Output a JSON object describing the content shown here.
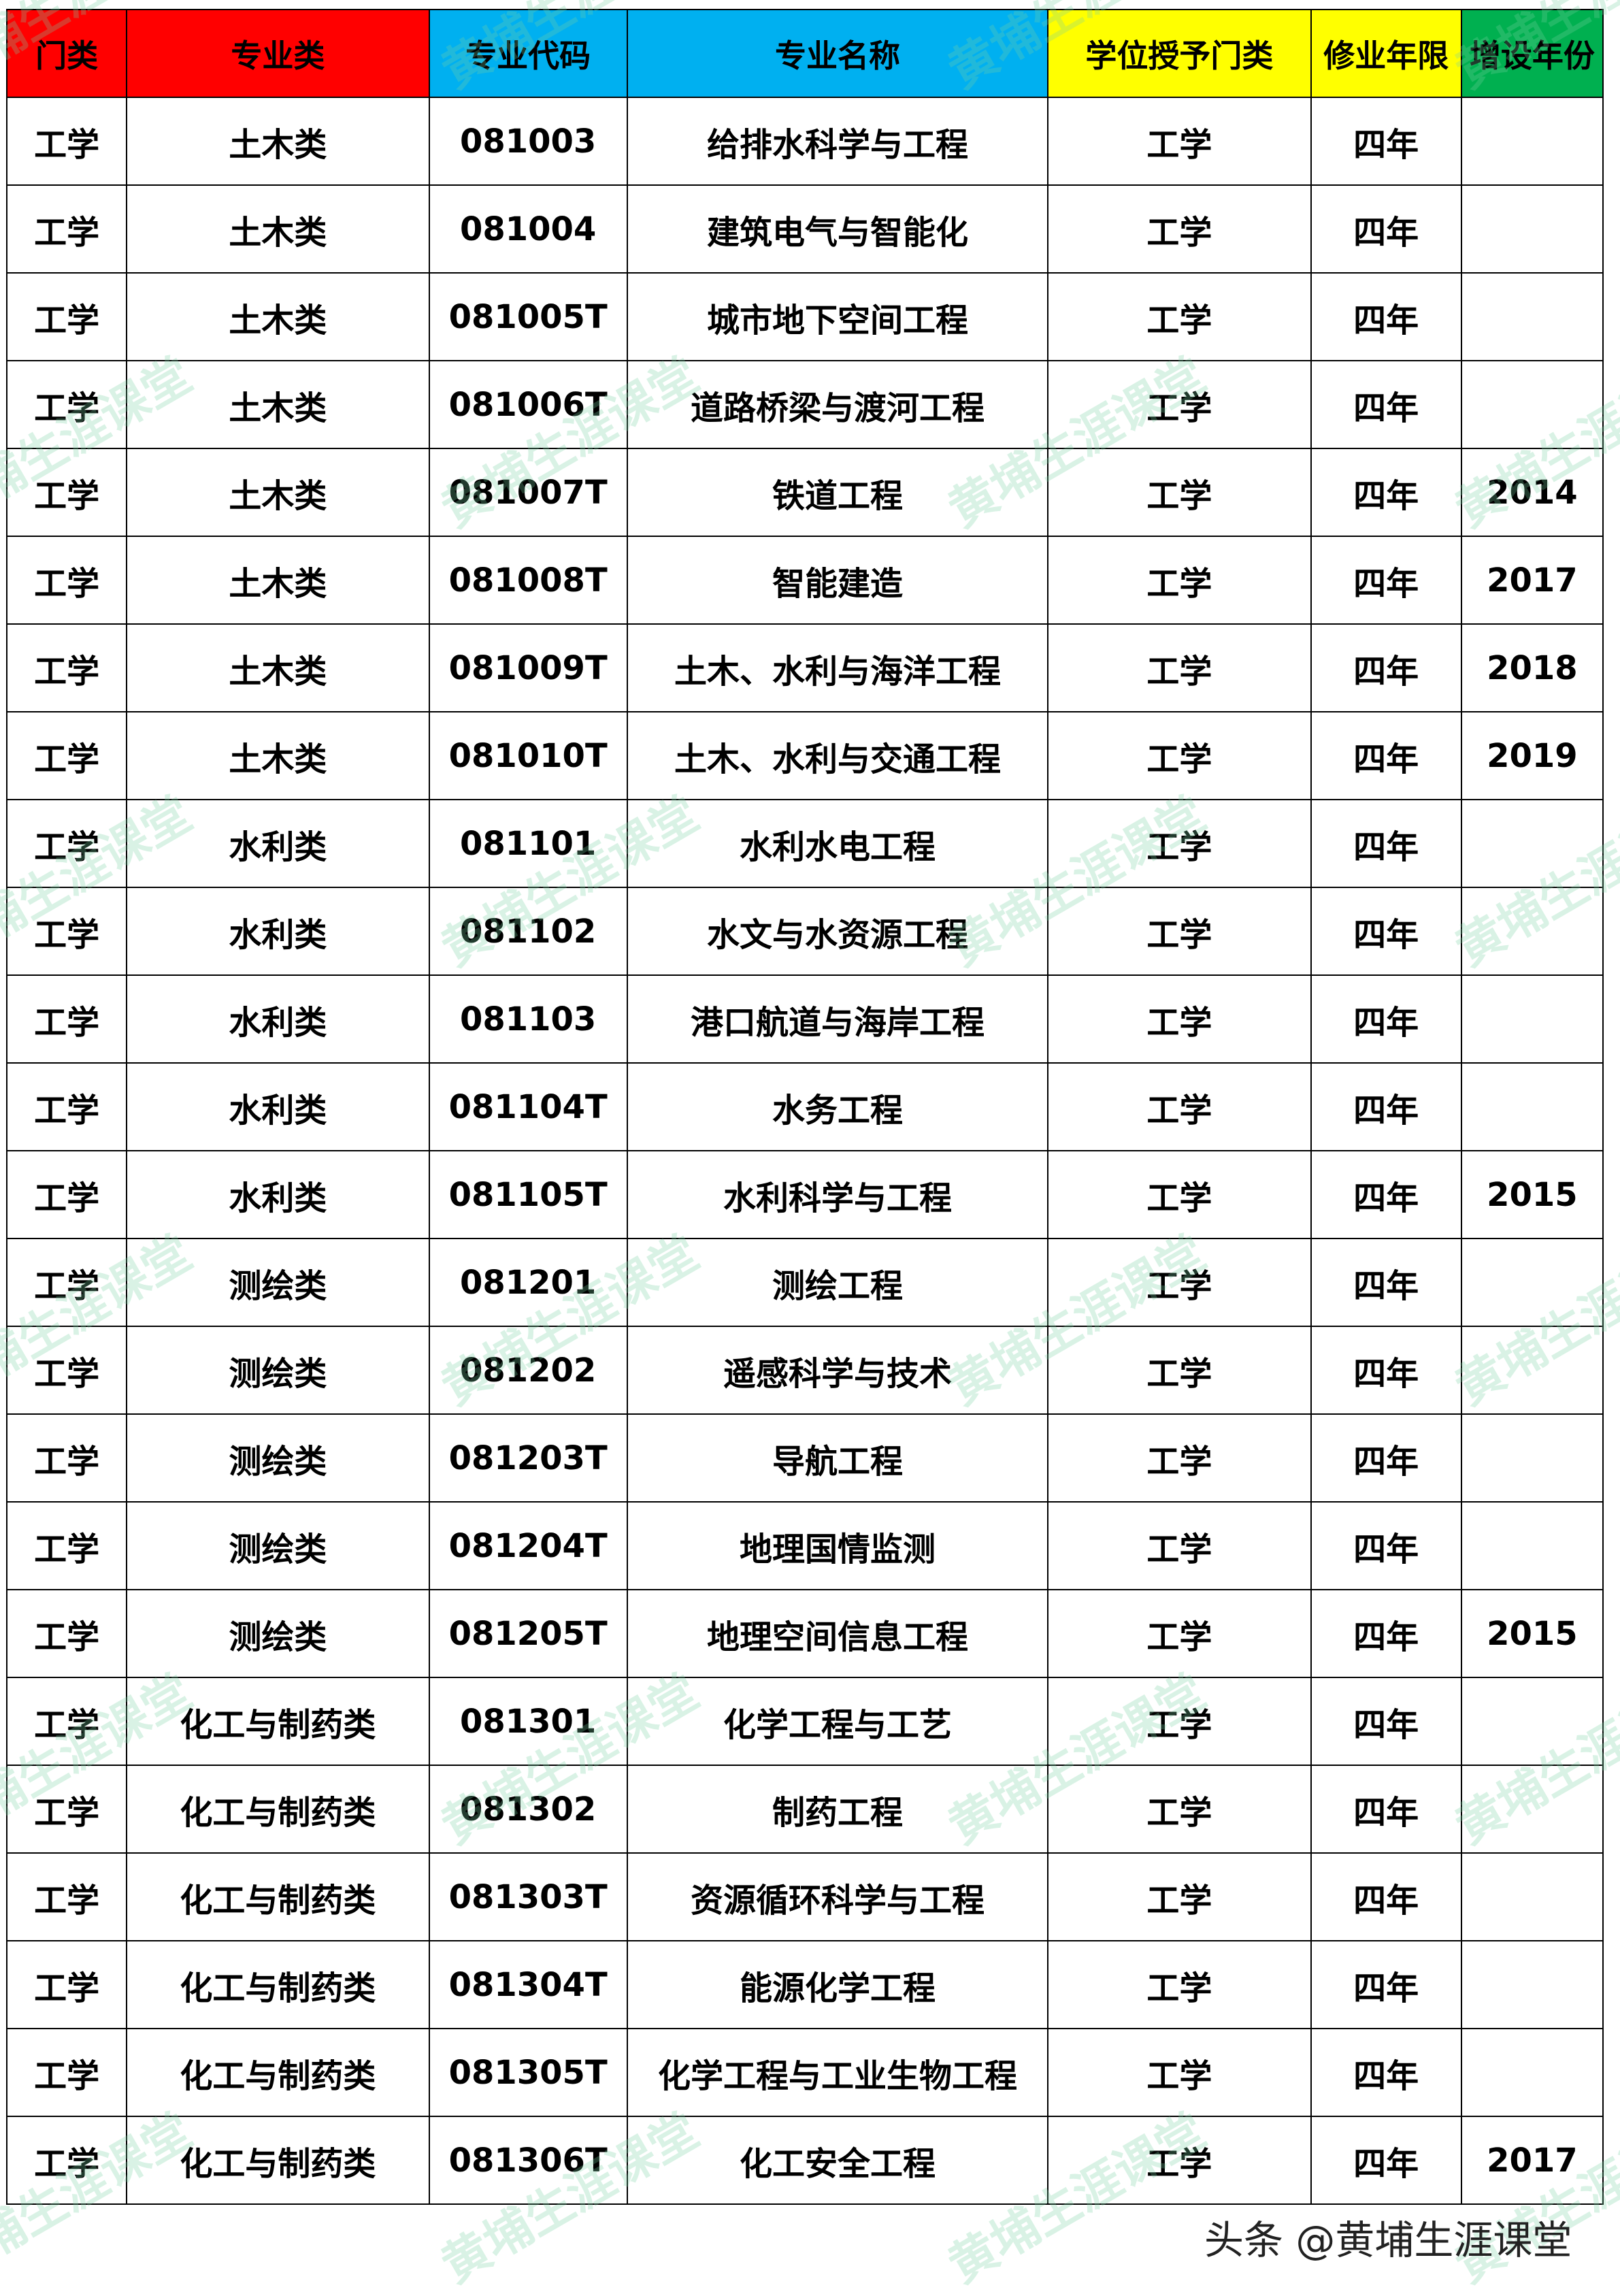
{
  "header_colors": [
    "#ff0000",
    "#ff0000",
    "#00b0f0",
    "#00b0f0",
    "#ffff00",
    "#ffff00",
    "#00b050"
  ],
  "columns": [
    "门类",
    "专业类",
    "专业代码",
    "专业名称",
    "学位授予门类",
    "修业年限",
    "增设年份"
  ],
  "rows": [
    [
      "工学",
      "土木类",
      "081003",
      "给排水科学与工程",
      "工学",
      "四年",
      ""
    ],
    [
      "工学",
      "土木类",
      "081004",
      "建筑电气与智能化",
      "工学",
      "四年",
      ""
    ],
    [
      "工学",
      "土木类",
      "081005T",
      "城市地下空间工程",
      "工学",
      "四年",
      ""
    ],
    [
      "工学",
      "土木类",
      "081006T",
      "道路桥梁与渡河工程",
      "工学",
      "四年",
      ""
    ],
    [
      "工学",
      "土木类",
      "081007T",
      "铁道工程",
      "工学",
      "四年",
      "2014"
    ],
    [
      "工学",
      "土木类",
      "081008T",
      "智能建造",
      "工学",
      "四年",
      "2017"
    ],
    [
      "工学",
      "土木类",
      "081009T",
      "土木、水利与海洋工程",
      "工学",
      "四年",
      "2018"
    ],
    [
      "工学",
      "土木类",
      "081010T",
      "土木、水利与交通工程",
      "工学",
      "四年",
      "2019"
    ],
    [
      "工学",
      "水利类",
      "081101",
      "水利水电工程",
      "工学",
      "四年",
      ""
    ],
    [
      "工学",
      "水利类",
      "081102",
      "水文与水资源工程",
      "工学",
      "四年",
      ""
    ],
    [
      "工学",
      "水利类",
      "081103",
      "港口航道与海岸工程",
      "工学",
      "四年",
      ""
    ],
    [
      "工学",
      "水利类",
      "081104T",
      "水务工程",
      "工学",
      "四年",
      ""
    ],
    [
      "工学",
      "水利类",
      "081105T",
      "水利科学与工程",
      "工学",
      "四年",
      "2015"
    ],
    [
      "工学",
      "测绘类",
      "081201",
      "测绘工程",
      "工学",
      "四年",
      ""
    ],
    [
      "工学",
      "测绘类",
      "081202",
      "遥感科学与技术",
      "工学",
      "四年",
      ""
    ],
    [
      "工学",
      "测绘类",
      "081203T",
      "导航工程",
      "工学",
      "四年",
      ""
    ],
    [
      "工学",
      "测绘类",
      "081204T",
      "地理国情监测",
      "工学",
      "四年",
      ""
    ],
    [
      "工学",
      "测绘类",
      "081205T",
      "地理空间信息工程",
      "工学",
      "四年",
      "2015"
    ],
    [
      "工学",
      "化工与制药类",
      "081301",
      "化学工程与工艺",
      "工学",
      "四年",
      ""
    ],
    [
      "工学",
      "化工与制药类",
      "081302",
      "制药工程",
      "工学",
      "四年",
      ""
    ],
    [
      "工学",
      "化工与制药类",
      "081303T",
      "资源循环科学与工程",
      "工学",
      "四年",
      ""
    ],
    [
      "工学",
      "化工与制药类",
      "081304T",
      "能源化学工程",
      "工学",
      "四年",
      ""
    ],
    [
      "工学",
      "化工与制药类",
      "081305T",
      "化学工程与工业生物工程",
      "工学",
      "四年",
      ""
    ],
    [
      "工学",
      "化工与制药类",
      "081306T",
      "化工安全工程",
      "工学",
      "四年",
      "2017"
    ]
  ],
  "watermark": "黄埔生涯课堂",
  "footer": "头条 @黄埔生涯课堂"
}
